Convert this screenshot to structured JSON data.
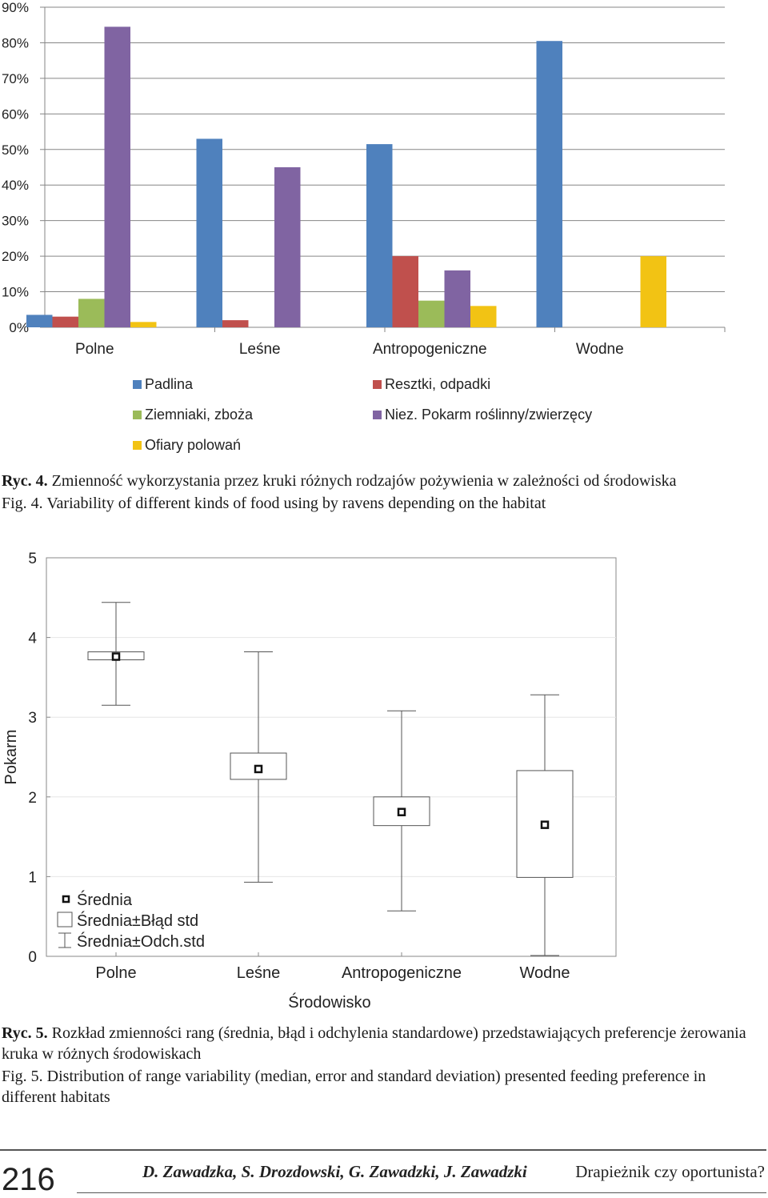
{
  "chart_data": [
    {
      "type": "bar",
      "categories": [
        "Polne",
        "Leśne",
        "Antropogeniczne",
        "Wodne"
      ],
      "yticks": [
        "0%",
        "10%",
        "20%",
        "30%",
        "40%",
        "50%",
        "60%",
        "70%",
        "80%",
        "90%"
      ],
      "ylim": [
        0,
        90
      ],
      "grid": true,
      "legend_placement": "bottom",
      "series": [
        {
          "name": "Padlina",
          "color": "#4f81bd",
          "values": [
            3.5,
            53,
            51.5,
            80.5
          ]
        },
        {
          "name": "Resztki, odpadki",
          "color": "#c0504d",
          "values": [
            3,
            2,
            20,
            0
          ]
        },
        {
          "name": "Ziemniaki, zboża",
          "color": "#9bbb59",
          "values": [
            8,
            0,
            7.5,
            0
          ]
        },
        {
          "name": "Niez. Pokarm roślinny/zwierzęcy",
          "color": "#8064a2",
          "values": [
            84.5,
            45,
            16,
            0
          ]
        },
        {
          "name": "Ofiary polowań",
          "color": "#f2c314",
          "values": [
            1.5,
            0,
            6,
            20
          ]
        }
      ]
    },
    {
      "type": "box",
      "categories": [
        "Polne",
        "Leśne",
        "Antropogeniczne",
        "Wodne"
      ],
      "xlabel": "Środowisko",
      "ylabel": "Pokarm",
      "yticks": [
        "0",
        "1",
        "2",
        "3",
        "4",
        "5"
      ],
      "ylim": [
        0,
        5
      ],
      "grid": true,
      "legend_placement": "bottom-left",
      "legend": [
        "Średnia",
        "Średnia±Błąd std",
        "Średnia±Odch.std"
      ],
      "mean": [
        3.76,
        2.35,
        1.81,
        1.65
      ],
      "se_low": [
        3.72,
        2.22,
        1.64,
        0.99
      ],
      "se_high": [
        3.82,
        2.55,
        2.0,
        2.33
      ],
      "sd_low": [
        3.15,
        0.93,
        0.57,
        0.01
      ],
      "sd_high": [
        4.44,
        3.82,
        3.08,
        3.28
      ]
    }
  ],
  "captions": {
    "fig4_pl_label": "Ryc. 4.",
    "fig4_pl_text": " Zmienność wykorzystania przez kruki różnych rodzajów pożywienia w zależności od środowiska",
    "fig4_en": "Fig. 4. Variability of different kinds of food using by ravens depending on the habitat",
    "fig5_pl_label": "Ryc. 5.",
    "fig5_pl_text": " Rozkład zmienności rang (średnia, błąd i odchylenia standardowe) przedstawiających preferencje żerowania kruka w różnych środowiskach",
    "fig5_en": "Fig. 5. Distribution of range variability (median, error and standard deviation) presented feeding preference in different habitats"
  },
  "footer": {
    "page_number": "216",
    "authors": "D. Zawadzka, S. Drozdowski, G. Zawadzki, J. Zawadzki",
    "title": "Drapieżnik czy oportunista?"
  }
}
